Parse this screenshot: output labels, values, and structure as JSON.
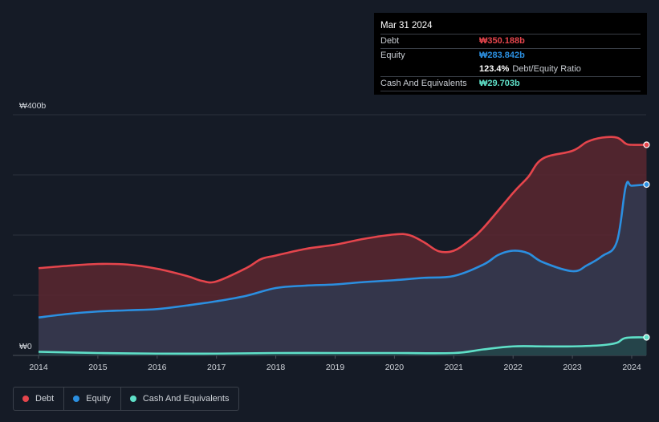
{
  "chart_data": {
    "type": "area",
    "y_top_label": "₩400b",
    "y_bottom_label": "₩0",
    "ylim": [
      0,
      400
    ],
    "unit": "₩b",
    "x_ticks": [
      "2014",
      "2015",
      "2016",
      "2017",
      "2018",
      "2019",
      "2020",
      "2021",
      "2022",
      "2023",
      "2024"
    ],
    "xlim": [
      2014.0,
      2024.25
    ],
    "series": [
      {
        "name": "Debt",
        "color": "#e5454c",
        "fill": "#5a2730",
        "points": [
          [
            2014.0,
            145
          ],
          [
            2014.5,
            149
          ],
          [
            2015.0,
            152
          ],
          [
            2015.5,
            151
          ],
          [
            2016.0,
            144
          ],
          [
            2016.5,
            132
          ],
          [
            2016.75,
            124
          ],
          [
            2017.0,
            123
          ],
          [
            2017.5,
            145
          ],
          [
            2017.75,
            160
          ],
          [
            2018.0,
            166
          ],
          [
            2018.5,
            177
          ],
          [
            2019.0,
            184
          ],
          [
            2019.5,
            194
          ],
          [
            2020.0,
            201
          ],
          [
            2020.25,
            200
          ],
          [
            2020.5,
            188
          ],
          [
            2020.75,
            173
          ],
          [
            2021.0,
            174
          ],
          [
            2021.25,
            190
          ],
          [
            2021.5,
            212
          ],
          [
            2022.0,
            270
          ],
          [
            2022.25,
            296
          ],
          [
            2022.5,
            327
          ],
          [
            2023.0,
            340
          ],
          [
            2023.25,
            355
          ],
          [
            2023.5,
            362
          ],
          [
            2023.75,
            362
          ],
          [
            2023.9,
            352
          ],
          [
            2024.0,
            350
          ],
          [
            2024.25,
            350
          ]
        ]
      },
      {
        "name": "Equity",
        "color": "#2b8fe0",
        "fill": "#2f3a50",
        "points": [
          [
            2014.0,
            63
          ],
          [
            2014.5,
            69
          ],
          [
            2015.0,
            73
          ],
          [
            2015.5,
            75
          ],
          [
            2016.0,
            77
          ],
          [
            2016.5,
            83
          ],
          [
            2017.0,
            90
          ],
          [
            2017.5,
            99
          ],
          [
            2018.0,
            112
          ],
          [
            2018.5,
            116
          ],
          [
            2019.0,
            118
          ],
          [
            2019.5,
            122
          ],
          [
            2020.0,
            125
          ],
          [
            2020.5,
            129
          ],
          [
            2021.0,
            132
          ],
          [
            2021.5,
            151
          ],
          [
            2021.75,
            167
          ],
          [
            2022.0,
            174
          ],
          [
            2022.25,
            170
          ],
          [
            2022.5,
            155
          ],
          [
            2023.0,
            140
          ],
          [
            2023.25,
            150
          ],
          [
            2023.5,
            165
          ],
          [
            2023.75,
            189
          ],
          [
            2023.9,
            281
          ],
          [
            2024.0,
            282
          ],
          [
            2024.25,
            284
          ]
        ]
      },
      {
        "name": "Cash And Equivalents",
        "color": "#5fe0c8",
        "fill": "#24464a",
        "points": [
          [
            2014.0,
            6
          ],
          [
            2015.0,
            4
          ],
          [
            2016.0,
            3
          ],
          [
            2017.0,
            3
          ],
          [
            2018.0,
            4
          ],
          [
            2019.0,
            4
          ],
          [
            2020.0,
            4
          ],
          [
            2021.0,
            4
          ],
          [
            2021.5,
            10
          ],
          [
            2022.0,
            15
          ],
          [
            2022.5,
            15
          ],
          [
            2023.0,
            15
          ],
          [
            2023.5,
            17
          ],
          [
            2023.75,
            21
          ],
          [
            2023.9,
            29
          ],
          [
            2024.25,
            30
          ]
        ]
      }
    ]
  },
  "tooltip": {
    "date": "Mar 31 2024",
    "rows": [
      {
        "label": "Debt",
        "value": "₩350.188b",
        "color": "#e5454c"
      },
      {
        "label": "Equity",
        "value": "₩283.842b",
        "color": "#2b8fe0"
      }
    ],
    "ratio_value": "123.4%",
    "ratio_label": "Debt/Equity Ratio",
    "cash": {
      "label": "Cash And Equivalents",
      "value": "₩29.703b",
      "color": "#5fe0c8"
    }
  },
  "legend": [
    {
      "label": "Debt",
      "color": "#e5454c"
    },
    {
      "label": "Equity",
      "color": "#2b8fe0"
    },
    {
      "label": "Cash And Equivalents",
      "color": "#5fe0c8"
    }
  ]
}
